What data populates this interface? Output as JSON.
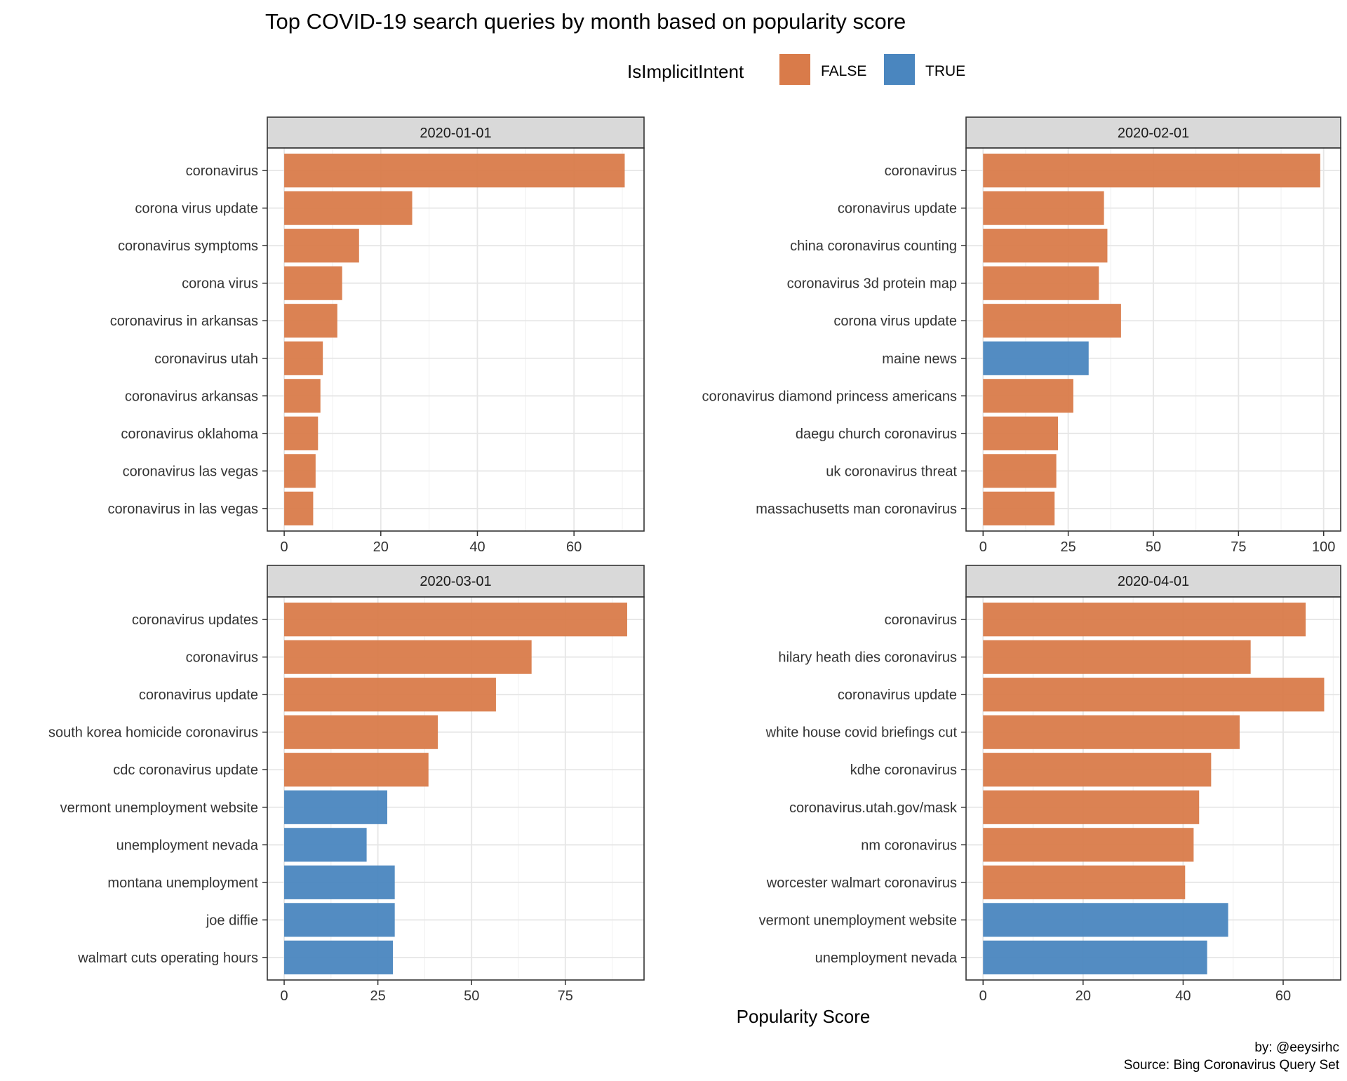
{
  "title": "Top COVID-19 search queries by month based on popularity score",
  "legend": {
    "title": "IsImplicitIntent",
    "placement": "top",
    "items": [
      {
        "label": "FALSE",
        "color": "#D97B4A"
      },
      {
        "label": "TRUE",
        "color": "#4A86BF"
      }
    ]
  },
  "caption": {
    "line1": "by: @eeysirhc",
    "line2": "Source: Bing Coronavirus Query Set"
  },
  "chart_data": {
    "type": "bar",
    "orientation": "horizontal",
    "xlabel": "Popularity Score",
    "grid": true,
    "panels": [
      {
        "facet": "2020-01-01",
        "xlim": [
          -3.5,
          74.5
        ],
        "ticks": [
          0,
          20,
          40,
          60
        ],
        "tick_labels": [
          "0",
          "20",
          "40",
          "60"
        ],
        "categories": [
          "coronavirus",
          "corona virus update",
          "coronavirus symptoms",
          "corona virus",
          "coronavirus in arkansas",
          "coronavirus utah",
          "coronavirus arkansas",
          "coronavirus oklahoma",
          "coronavirus las vegas",
          "coronavirus in las vegas"
        ],
        "values": [
          70.5,
          26.5,
          15.5,
          12,
          11,
          8,
          7.5,
          7,
          6.5,
          6
        ],
        "implicit": [
          false,
          false,
          false,
          false,
          false,
          false,
          false,
          false,
          false,
          false
        ]
      },
      {
        "facet": "2020-02-01",
        "xlim": [
          -5,
          105
        ],
        "ticks": [
          0,
          25,
          50,
          75,
          100
        ],
        "tick_labels": [
          "0",
          "25",
          "50",
          "75",
          "100"
        ],
        "categories": [
          "coronavirus",
          "coronavirus update",
          "china coronavirus counting",
          "coronavirus 3d protein map",
          "corona virus update",
          "maine news",
          "coronavirus diamond princess americans",
          "daegu church coronavirus",
          "uk coronavirus threat",
          "massachusetts man coronavirus"
        ],
        "values": [
          99,
          35.5,
          36.5,
          34,
          40.5,
          31,
          26.5,
          22,
          21.5,
          21
        ],
        "implicit": [
          false,
          false,
          false,
          false,
          false,
          true,
          false,
          false,
          false,
          false
        ]
      },
      {
        "facet": "2020-03-01",
        "xlim": [
          -4.5,
          96
        ],
        "ticks": [
          0,
          25,
          50,
          75
        ],
        "tick_labels": [
          "0",
          "25",
          "50",
          "75"
        ],
        "categories": [
          "coronavirus updates",
          "coronavirus",
          "coronavirus update",
          "south korea homicide coronavirus",
          "cdc coronavirus update",
          "vermont unemployment website",
          "unemployment nevada",
          "montana unemployment",
          "joe diffie",
          "walmart cuts operating hours"
        ],
        "values": [
          91.5,
          66,
          56.5,
          41,
          38.5,
          27.5,
          22,
          29.5,
          29.5,
          29
        ],
        "implicit": [
          false,
          false,
          false,
          false,
          false,
          true,
          true,
          true,
          true,
          true
        ]
      },
      {
        "facet": "2020-04-01",
        "xlim": [
          -3.4,
          71.5
        ],
        "ticks": [
          0,
          20,
          40,
          60
        ],
        "tick_labels": [
          "0",
          "20",
          "40",
          "60"
        ],
        "categories": [
          "coronavirus",
          "hilary heath dies coronavirus",
          "coronavirus update",
          "white house covid briefings cut",
          "kdhe coronavirus",
          "coronavirus.utah.gov/mask",
          "nm coronavirus",
          "worcester walmart coronavirus",
          "vermont unemployment website",
          "unemployment nevada"
        ],
        "values": [
          64.5,
          53.5,
          68.2,
          51.3,
          45.6,
          43.2,
          42.1,
          40.4,
          49,
          44.8
        ],
        "implicit": [
          false,
          false,
          false,
          false,
          false,
          false,
          false,
          false,
          true,
          true
        ]
      }
    ]
  }
}
